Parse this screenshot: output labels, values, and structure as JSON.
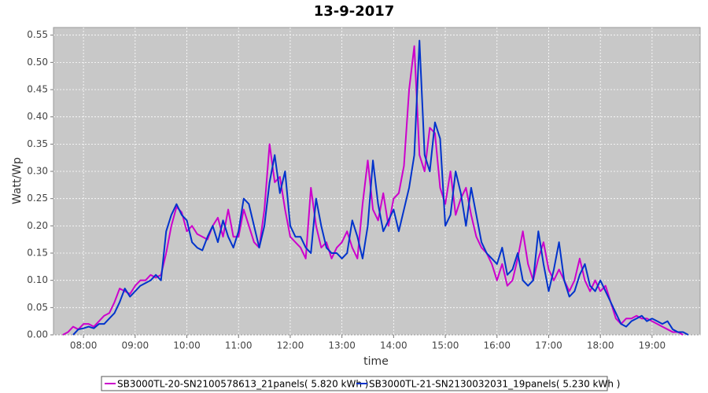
{
  "chart_data": {
    "type": "line",
    "title": "13-9-2017",
    "xlabel": "time",
    "ylabel": "Watt/Wp",
    "grid": true,
    "legend": "bottom",
    "xlim": [
      7.42,
      19.93
    ],
    "ylim": [
      0,
      0.564
    ],
    "xticks": [
      {
        "value": 8,
        "label": "08:00"
      },
      {
        "value": 9,
        "label": "09:00"
      },
      {
        "value": 10,
        "label": "10:00"
      },
      {
        "value": 11,
        "label": "11:00"
      },
      {
        "value": 12,
        "label": "12:00"
      },
      {
        "value": 13,
        "label": "13:00"
      },
      {
        "value": 14,
        "label": "14:00"
      },
      {
        "value": 15,
        "label": "15:00"
      },
      {
        "value": 16,
        "label": "16:00"
      },
      {
        "value": 17,
        "label": "17:00"
      },
      {
        "value": 18,
        "label": "18:00"
      },
      {
        "value": 19,
        "label": "19:00"
      }
    ],
    "yticks": [
      {
        "value": 0,
        "label": "0.00"
      },
      0.05,
      {
        "value": 0.1,
        "label": "0.10"
      },
      0.15,
      {
        "value": 0.2,
        "label": "0.20"
      },
      0.25,
      {
        "value": 0.3,
        "label": "0.30"
      },
      0.35,
      {
        "value": 0.4,
        "label": "0.40"
      },
      0.45,
      {
        "value": 0.5,
        "label": "0.50"
      },
      0.55
    ],
    "x": [
      7.6,
      7.7,
      7.8,
      7.9,
      8.0,
      8.1,
      8.2,
      8.3,
      8.4,
      8.5,
      8.6,
      8.7,
      8.8,
      8.9,
      9.0,
      9.1,
      9.2,
      9.3,
      9.4,
      9.5,
      9.6,
      9.7,
      9.8,
      9.9,
      10.0,
      10.1,
      10.2,
      10.3,
      10.4,
      10.5,
      10.6,
      10.7,
      10.8,
      10.9,
      11.0,
      11.1,
      11.2,
      11.3,
      11.4,
      11.5,
      11.6,
      11.7,
      11.8,
      11.9,
      12.0,
      12.1,
      12.2,
      12.3,
      12.4,
      12.5,
      12.6,
      12.7,
      12.8,
      12.9,
      13.0,
      13.1,
      13.2,
      13.3,
      13.4,
      13.5,
      13.6,
      13.7,
      13.8,
      13.9,
      14.0,
      14.1,
      14.2,
      14.3,
      14.4,
      14.5,
      14.6,
      14.7,
      14.8,
      14.9,
      15.0,
      15.1,
      15.2,
      15.3,
      15.4,
      15.5,
      15.6,
      15.7,
      15.8,
      15.9,
      16.0,
      16.1,
      16.2,
      16.3,
      16.4,
      16.5,
      16.6,
      16.7,
      16.8,
      16.9,
      17.0,
      17.1,
      17.2,
      17.3,
      17.4,
      17.5,
      17.6,
      17.7,
      17.8,
      17.9,
      18.0,
      18.1,
      18.2,
      18.3,
      18.4,
      18.5,
      18.6,
      18.7,
      18.8,
      18.9,
      19.0,
      19.1,
      19.2,
      19.3,
      19.4,
      19.5,
      19.6,
      19.7
    ],
    "series": [
      {
        "name": "SB3000TL-20-SN2100578613_21panels( 5.820 kWh )",
        "color": "#cc00cc",
        "values": [
          0,
          0.005,
          0.015,
          0.01,
          0.02,
          0.02,
          0.015,
          0.025,
          0.035,
          0.04,
          0.06,
          0.085,
          0.08,
          0.075,
          0.09,
          0.1,
          0.1,
          0.11,
          0.105,
          0.11,
          0.15,
          0.2,
          0.235,
          0.225,
          0.19,
          0.2,
          0.185,
          0.18,
          0.175,
          0.2,
          0.215,
          0.18,
          0.23,
          0.18,
          0.18,
          0.23,
          0.2,
          0.17,
          0.16,
          0.23,
          0.35,
          0.28,
          0.29,
          0.23,
          0.18,
          0.17,
          0.16,
          0.14,
          0.27,
          0.2,
          0.16,
          0.17,
          0.14,
          0.16,
          0.17,
          0.19,
          0.16,
          0.14,
          0.24,
          0.32,
          0.23,
          0.21,
          0.26,
          0.2,
          0.25,
          0.26,
          0.31,
          0.45,
          0.53,
          0.33,
          0.3,
          0.38,
          0.37,
          0.27,
          0.24,
          0.3,
          0.22,
          0.25,
          0.27,
          0.22,
          0.18,
          0.16,
          0.15,
          0.13,
          0.1,
          0.13,
          0.09,
          0.1,
          0.14,
          0.19,
          0.13,
          0.1,
          0.14,
          0.17,
          0.12,
          0.1,
          0.12,
          0.1,
          0.08,
          0.1,
          0.14,
          0.1,
          0.08,
          0.1,
          0.08,
          0.09,
          0.06,
          0.03,
          0.02,
          0.03,
          0.03,
          0.035,
          0.03,
          0.03,
          0.025,
          0.02,
          0.015,
          0.01,
          0.005,
          0.005,
          0,
          null
        ]
      },
      {
        "name": "SB3000TL-21-SN2130032031_19panels( 5.230 kWh )",
        "color": "#0033cc",
        "values": [
          null,
          null,
          0,
          0.01,
          0.012,
          0.015,
          0.012,
          0.02,
          0.02,
          0.03,
          0.04,
          0.06,
          0.085,
          0.07,
          0.08,
          0.09,
          0.095,
          0.1,
          0.11,
          0.1,
          0.19,
          0.22,
          0.24,
          0.22,
          0.21,
          0.17,
          0.16,
          0.155,
          0.18,
          0.2,
          0.17,
          0.21,
          0.18,
          0.16,
          0.19,
          0.25,
          0.24,
          0.2,
          0.16,
          0.2,
          0.28,
          0.33,
          0.26,
          0.3,
          0.2,
          0.18,
          0.18,
          0.16,
          0.15,
          0.25,
          0.2,
          0.16,
          0.15,
          0.15,
          0.14,
          0.15,
          0.21,
          0.18,
          0.14,
          0.2,
          0.32,
          0.24,
          0.19,
          0.21,
          0.23,
          0.19,
          0.23,
          0.27,
          0.33,
          0.54,
          0.33,
          0.3,
          0.39,
          0.36,
          0.2,
          0.22,
          0.3,
          0.26,
          0.2,
          0.27,
          0.22,
          0.17,
          0.15,
          0.14,
          0.13,
          0.16,
          0.11,
          0.12,
          0.15,
          0.1,
          0.09,
          0.1,
          0.19,
          0.13,
          0.08,
          0.12,
          0.17,
          0.1,
          0.07,
          0.08,
          0.11,
          0.13,
          0.09,
          0.08,
          0.1,
          0.08,
          0.06,
          0.04,
          0.02,
          0.015,
          0.025,
          0.03,
          0.035,
          0.025,
          0.03,
          0.025,
          0.02,
          0.025,
          0.01,
          0.005,
          0.005,
          0
        ]
      }
    ]
  }
}
